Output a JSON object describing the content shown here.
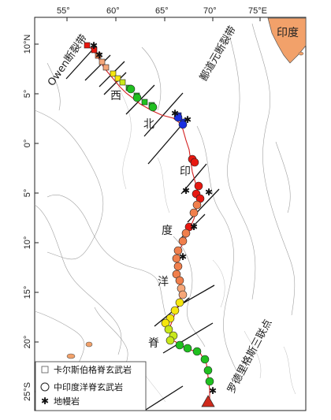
{
  "map": {
    "lon_ticks": [
      "55°",
      "60°",
      "65°",
      "70°",
      "75°E"
    ],
    "lat_ticks": [
      "10°N",
      "5°",
      "0°",
      "5°",
      "10°",
      "15°",
      "20°",
      "25°S"
    ],
    "labels": {
      "india": "印度",
      "owen_fault": "Owen断裂带",
      "kulu_fault": "鄯道元断裂带",
      "rodrigues": "罗德里格斯三联点",
      "ridge_chars": [
        "西",
        "北",
        "印",
        "度",
        "洋",
        "脊"
      ]
    },
    "legend": {
      "carlsberg": "卡尔斯伯格脊玄武岩",
      "cir": "中印度洋脊玄武岩",
      "mantle": "地幔岩"
    },
    "colors": {
      "land": "#f2a16a",
      "ridge_line": "#d42020",
      "fault": "#111111",
      "contour": "#9a9a9a",
      "red": "#e8170f",
      "orange": "#f07f4c",
      "peach": "#f6a779",
      "yellow": "#f5e60e",
      "yellowgreen": "#c8e81a",
      "green": "#20c020",
      "blue": "#1a2fe0",
      "triangle": "#cf2a1c"
    }
  }
}
